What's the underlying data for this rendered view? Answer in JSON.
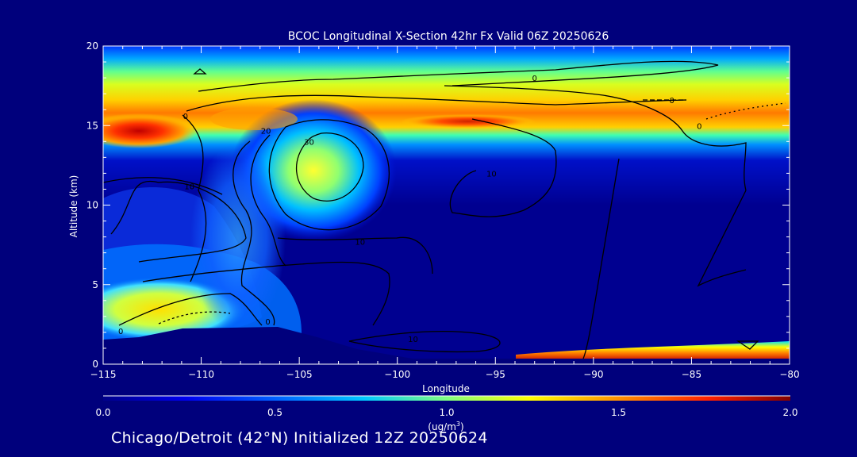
{
  "chart_data": {
    "type": "heatmap",
    "title": "BCOC Longitudinal X-Section 42hr  Fx Valid 06Z 20250626",
    "xlabel": "Longitude",
    "ylabel": "Altitude (km)",
    "xlim": [
      -115,
      -80
    ],
    "ylim": [
      0,
      20
    ],
    "x_ticks": [
      -115,
      -110,
      -105,
      -100,
      -95,
      -90,
      -85,
      -80
    ],
    "y_ticks": [
      0,
      5,
      10,
      15,
      20
    ],
    "colorbar": {
      "label_main": "(ug/m",
      "label_exp": "3",
      "label_close": ")",
      "range": [
        0.0,
        2.0
      ],
      "ticks": [
        "0.0",
        "0.5",
        "1.0",
        "1.5",
        "2.0"
      ]
    },
    "contour_labels": [
      {
        "text": "0",
        "lon": -110.8,
        "alt": 15.6
      },
      {
        "text": "20",
        "lon": -106.7,
        "alt": 14.7
      },
      {
        "text": "30",
        "lon": -104.5,
        "alt": 14.0
      },
      {
        "text": "10",
        "lon": -110.6,
        "alt": 11.2
      },
      {
        "text": "0",
        "lon": -93.0,
        "alt": 18.0
      },
      {
        "text": "0",
        "lon": -86.0,
        "alt": 16.6
      },
      {
        "text": "0",
        "lon": -84.6,
        "alt": 15.0
      },
      {
        "text": "10",
        "lon": -95.2,
        "alt": 12.0
      },
      {
        "text": "10",
        "lon": -101.9,
        "alt": 7.7
      },
      {
        "text": "0",
        "lon": -114.1,
        "alt": 2.1
      },
      {
        "text": "0",
        "lon": -106.6,
        "alt": 2.7
      },
      {
        "text": "10",
        "lon": -99.2,
        "alt": 1.6
      }
    ],
    "grid": false,
    "legend": "bottom colorbar"
  },
  "footer": {
    "text": "Chicago/Detroit (42°N) Initialized 12Z 20250624"
  },
  "colors": {
    "background": "#00007c",
    "axes": "#ffffff",
    "contours": "#000000"
  }
}
